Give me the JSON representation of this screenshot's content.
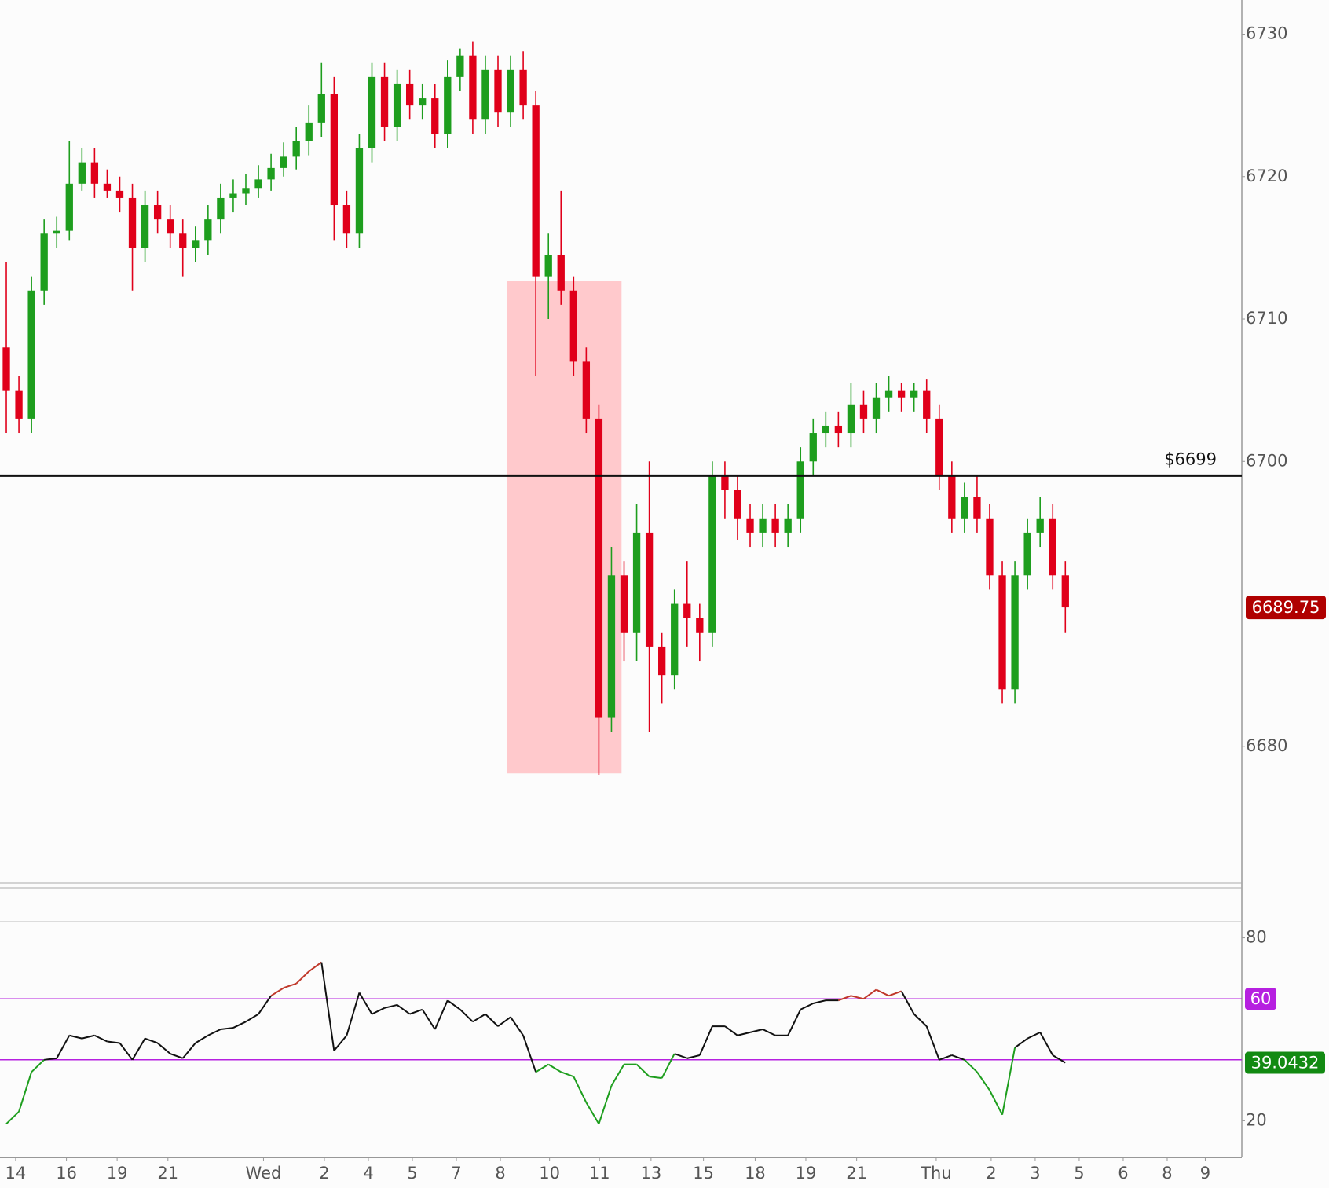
{
  "chart_data": {
    "type": "candlestick",
    "open": [
      6708.0,
      6705.0,
      6703.0,
      6712.0,
      6716.0,
      6716.2,
      6719.5,
      6721.0,
      6719.5,
      6719.0,
      6718.5,
      6715.0,
      6718.0,
      6717.0,
      6716.0,
      6715.0,
      6715.5,
      6717.0,
      6718.5,
      6718.8,
      6719.2,
      6719.8,
      6720.6,
      6721.4,
      6722.5,
      6723.8,
      6725.8,
      6718.0,
      6716.0,
      6722.0,
      6727.0,
      6723.5,
      6726.5,
      6725.0,
      6725.5,
      6723.0,
      6727.0,
      6728.5,
      6724.0,
      6727.5,
      6724.5,
      6727.5,
      6725.0,
      6713.0,
      6714.5,
      6712.0,
      6707.0,
      6703.0,
      6682.0,
      6692.0,
      6688.0,
      6695.0,
      6687.0,
      6685.0,
      6690.0,
      6689.0,
      6688.0,
      6699.0,
      6698.0,
      6696.0,
      6695.0,
      6696.0,
      6695.0,
      6696.0,
      6700.0,
      6702.0,
      6702.5,
      6702.0,
      6704.0,
      6703.0,
      6704.5,
      6705.0,
      6704.5,
      6705.0,
      6703.0,
      6699.0,
      6696.0,
      6697.5,
      6696.0,
      6692.0,
      6684.0,
      6692.0,
      6695.0,
      6696.0,
      6692.0
    ],
    "high": [
      6714,
      6706,
      6713,
      6717,
      6717.2,
      6722.5,
      6722,
      6722,
      6720.5,
      6720,
      6719.5,
      6719,
      6719,
      6718,
      6717,
      6716.5,
      6718,
      6719.5,
      6719.8,
      6720.2,
      6720.8,
      6721.6,
      6722.4,
      6723.5,
      6725,
      6728,
      6727,
      6719,
      6723,
      6728,
      6728,
      6727.5,
      6727.5,
      6726.5,
      6726.5,
      6728.2,
      6729,
      6729.5,
      6728.5,
      6728.5,
      6728.5,
      6728.8,
      6726,
      6716,
      6719,
      6713,
      6708,
      6704,
      6694,
      6693,
      6697,
      6700,
      6688,
      6691,
      6693,
      6690,
      6700,
      6700,
      6699,
      6697,
      6697,
      6697,
      6697,
      6701,
      6703,
      6703.5,
      6703.5,
      6705.5,
      6705,
      6705.5,
      6706,
      6705.5,
      6705.5,
      6705.8,
      6704,
      6700,
      6698.5,
      6699,
      6697,
      6693,
      6693,
      6696,
      6697.5,
      6697,
      6693
    ],
    "low": [
      6702,
      6702,
      6702,
      6711,
      6715,
      6715.5,
      6719,
      6718.5,
      6718.5,
      6717.5,
      6712,
      6714,
      6716,
      6715,
      6713,
      6714,
      6714.5,
      6716,
      6717.5,
      6718,
      6718.5,
      6719,
      6720,
      6720.5,
      6721.5,
      6722.8,
      6715.5,
      6715,
      6715,
      6721,
      6722.5,
      6722.5,
      6724,
      6724,
      6722,
      6722,
      6726,
      6723,
      6723,
      6723.5,
      6723.5,
      6724,
      6706,
      6710,
      6711,
      6706,
      6702,
      6678,
      6681,
      6686,
      6686,
      6681,
      6683,
      6684,
      6687,
      6686,
      6687,
      6696,
      6694.5,
      6694,
      6694,
      6694,
      6694,
      6695,
      6699,
      6701,
      6701,
      6701,
      6702,
      6702,
      6703.5,
      6703.5,
      6703.5,
      6702,
      6698,
      6695,
      6695,
      6695,
      6691,
      6683,
      6683,
      6691,
      6694,
      6691,
      6688
    ],
    "close": [
      6705.0,
      6703.0,
      6712.0,
      6716.0,
      6716.2,
      6719.5,
      6721.0,
      6719.5,
      6719.0,
      6718.5,
      6715.0,
      6718.0,
      6717.0,
      6716.0,
      6715.0,
      6715.5,
      6717.0,
      6718.5,
      6718.8,
      6719.2,
      6719.8,
      6720.6,
      6721.4,
      6722.5,
      6723.8,
      6725.8,
      6718.0,
      6716.0,
      6722.0,
      6727.0,
      6723.5,
      6726.5,
      6725.0,
      6725.5,
      6723.0,
      6727.0,
      6728.5,
      6724.0,
      6727.5,
      6724.5,
      6727.5,
      6725.0,
      6713.0,
      6714.5,
      6712.0,
      6707.0,
      6703.0,
      6682.0,
      6692.0,
      6688.0,
      6695.0,
      6687.0,
      6685.0,
      6690.0,
      6689.0,
      6688.0,
      6699.0,
      6698.0,
      6696.0,
      6695.0,
      6696.0,
      6695.0,
      6696.0,
      6700.0,
      6702.0,
      6702.5,
      6702.0,
      6704.0,
      6703.0,
      6704.5,
      6705.0,
      6704.5,
      6705.0,
      6703.0,
      6699.0,
      6696.0,
      6697.5,
      6696.0,
      6692.0,
      6684.0,
      6692.0,
      6695.0,
      6696.0,
      6692.0,
      6689.75
    ],
    "up_color": "#1e9e1e",
    "down_color": "#e0001a",
    "xlim": [
      -0.5,
      98
    ],
    "xticks": [
      {
        "value": 0.74,
        "label": "14"
      },
      {
        "value": 4.77,
        "label": "16"
      },
      {
        "value": 8.79,
        "label": "19"
      },
      {
        "value": 12.82,
        "label": "21"
      },
      {
        "value": 20.4,
        "label": "Wed"
      },
      {
        "value": 25.23,
        "label": "2"
      },
      {
        "value": 28.72,
        "label": "4"
      },
      {
        "value": 32.21,
        "label": "5"
      },
      {
        "value": 35.7,
        "label": "7"
      },
      {
        "value": 39.19,
        "label": "8"
      },
      {
        "value": 43.09,
        "label": "10"
      },
      {
        "value": 47.05,
        "label": "11"
      },
      {
        "value": 51.14,
        "label": "13"
      },
      {
        "value": 55.3,
        "label": "15"
      },
      {
        "value": 59.4,
        "label": "18"
      },
      {
        "value": 63.42,
        "label": "19"
      },
      {
        "value": 67.45,
        "label": "21"
      },
      {
        "value": 73.76,
        "label": "Thu"
      },
      {
        "value": 78.12,
        "label": "2"
      },
      {
        "value": 81.61,
        "label": "3"
      },
      {
        "value": 85.1,
        "label": "5"
      },
      {
        "value": 88.59,
        "label": "6"
      },
      {
        "value": 92.08,
        "label": "8"
      },
      {
        "value": 95.1,
        "label": "9"
      }
    ],
    "ylim": [
      6670.5,
      6732.4
    ],
    "yticks": [
      6680,
      6700,
      6710,
      6720,
      6730
    ],
    "reference_line": {
      "value": 6699,
      "label": "$6699"
    },
    "highlight": {
      "x": [
        39.7,
        48.8
      ],
      "y": [
        6678.1,
        6712.7
      ],
      "color": "#ffc9cc"
    },
    "rsi": {
      "ylim": [
        8,
        85.3
      ],
      "yticks": [
        20,
        80
      ],
      "levels": [
        40,
        60
      ],
      "level_color": "#b620e0",
      "colors": {
        "high": "#c0392b",
        "mid": "#111111",
        "low": "#1e9e1e"
      },
      "values": [
        19,
        23,
        36,
        40,
        40.5,
        48,
        47,
        48,
        46,
        45.5,
        40,
        47,
        45.5,
        42,
        40.5,
        45.5,
        48,
        50,
        50.5,
        52.5,
        55,
        61,
        63.6,
        65,
        69,
        72,
        43,
        48,
        62,
        55,
        57,
        58,
        55,
        56.5,
        50,
        59.5,
        56.5,
        52.5,
        55,
        51,
        54,
        48,
        36,
        38.5,
        36,
        34.5,
        26,
        19,
        31.5,
        38.5,
        38.5,
        34.5,
        34,
        42,
        40.5,
        41.5,
        51,
        51,
        48,
        49,
        50,
        48,
        48,
        56.5,
        58.5,
        59.5,
        59.5,
        61,
        60,
        63,
        61,
        62.5,
        55,
        51,
        40,
        41.5,
        40,
        36,
        30,
        22,
        44,
        47,
        49,
        41.5,
        39.0432
      ]
    }
  }
}
